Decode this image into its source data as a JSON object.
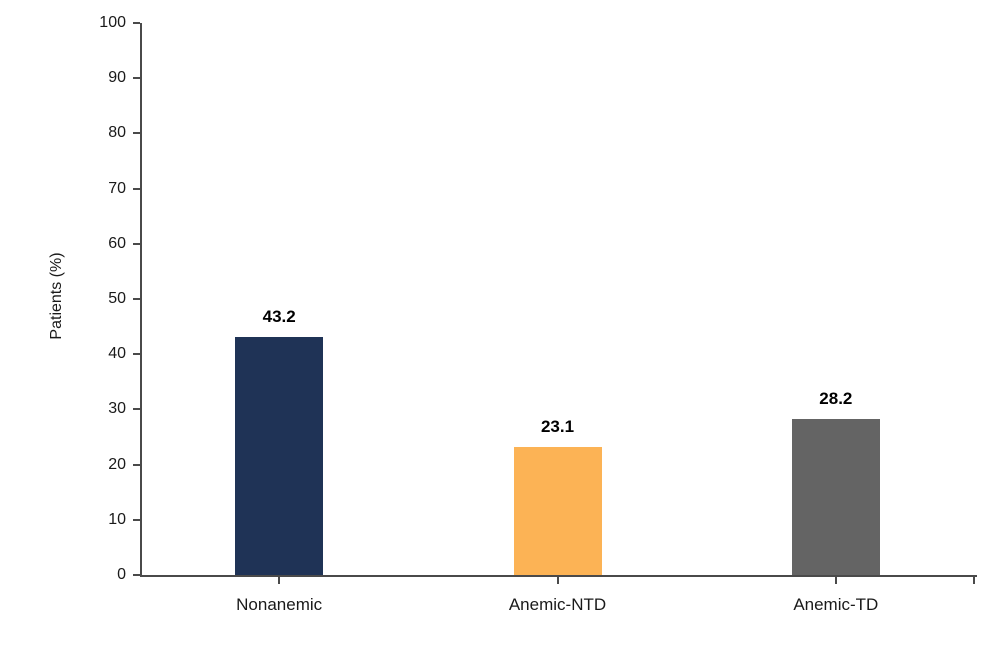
{
  "chart_data": {
    "type": "bar",
    "categories": [
      "Nonanemic",
      "Anemic-NTD",
      "Anemic-TD"
    ],
    "values": [
      43.2,
      23.1,
      28.2
    ],
    "value_labels": [
      "43.2",
      "23.1",
      "28.2"
    ],
    "bar_colors": [
      "#1f3356",
      "#fcb355",
      "#646464"
    ],
    "title": "",
    "xlabel": "",
    "ylabel": "Patients (%)",
    "ylim": [
      0,
      100
    ],
    "yticks": [
      0,
      10,
      20,
      30,
      40,
      50,
      60,
      70,
      80,
      90,
      100
    ],
    "grid": false,
    "legend_position": "none",
    "axis_color": "#4a4a4a",
    "data_label_style": "bold-above-bar"
  }
}
